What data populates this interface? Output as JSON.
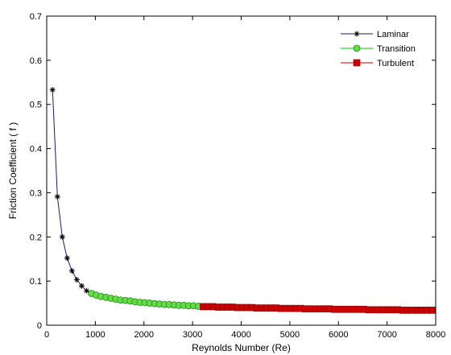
{
  "chart_data": {
    "type": "line",
    "title": "",
    "xlabel": "Reynolds Number (Re)",
    "ylabel": "Friction Coefficient ( f )",
    "xlim": [
      0,
      8000
    ],
    "ylim": [
      0,
      0.7
    ],
    "xticks": [
      0,
      1000,
      2000,
      3000,
      4000,
      5000,
      6000,
      7000,
      8000
    ],
    "xtick_labels": [
      "0",
      "1000",
      "2000",
      "3000",
      "4000",
      "5000",
      "6000",
      "7000",
      "8000"
    ],
    "yticks": [
      0,
      0.1,
      0.2,
      0.3,
      0.4,
      0.5,
      0.6,
      0.7
    ],
    "ytick_labels": [
      "0",
      "0.1",
      "0.2",
      "0.3",
      "0.4",
      "0.5",
      "0.6",
      "0.7"
    ],
    "grid": false,
    "legend_position": "top-right",
    "series": [
      {
        "name": "Laminar",
        "color": "#1a1a6e",
        "marker": "star",
        "x": [
          120,
          220,
          320,
          420,
          520,
          620,
          720,
          820
        ],
        "y": [
          0.533,
          0.291,
          0.2,
          0.152,
          0.123,
          0.103,
          0.089,
          0.078
        ]
      },
      {
        "name": "Transition",
        "color": "#00cc00",
        "marker_fill": "#66dd44",
        "marker": "circle",
        "x": [
          920,
          1020,
          1120,
          1220,
          1320,
          1420,
          1520,
          1620,
          1720,
          1820,
          1920,
          2020,
          2120,
          2220,
          2320,
          2420,
          2520,
          2620,
          2720,
          2820,
          2920,
          3020,
          3120
        ],
        "y": [
          0.072,
          0.068,
          0.065,
          0.063,
          0.061,
          0.059,
          0.057,
          0.056,
          0.055,
          0.053,
          0.052,
          0.051,
          0.05,
          0.049,
          0.048,
          0.047,
          0.047,
          0.046,
          0.045,
          0.045,
          0.044,
          0.044,
          0.043
        ]
      },
      {
        "name": "Turbulent",
        "color": "#cc0000",
        "marker": "square",
        "x": [
          3220,
          3320,
          3420,
          3520,
          3620,
          3720,
          3820,
          3920,
          4020,
          4120,
          4220,
          4320,
          4420,
          4520,
          4620,
          4720,
          4820,
          4920,
          5020,
          5120,
          5220,
          5320,
          5420,
          5520,
          5620,
          5720,
          5820,
          5920,
          6020,
          6120,
          6220,
          6320,
          6420,
          6520,
          6620,
          6720,
          6820,
          6920,
          7020,
          7120,
          7220,
          7320,
          7420,
          7520,
          7620,
          7720,
          7820,
          7920
        ],
        "y": [
          0.042,
          0.042,
          0.042,
          0.041,
          0.041,
          0.041,
          0.041,
          0.04,
          0.04,
          0.04,
          0.04,
          0.039,
          0.039,
          0.039,
          0.039,
          0.039,
          0.038,
          0.038,
          0.038,
          0.038,
          0.038,
          0.037,
          0.037,
          0.037,
          0.037,
          0.037,
          0.037,
          0.036,
          0.036,
          0.036,
          0.036,
          0.036,
          0.036,
          0.036,
          0.035,
          0.035,
          0.035,
          0.035,
          0.035,
          0.035,
          0.035,
          0.034,
          0.034,
          0.034,
          0.034,
          0.034,
          0.034,
          0.034
        ]
      }
    ]
  }
}
